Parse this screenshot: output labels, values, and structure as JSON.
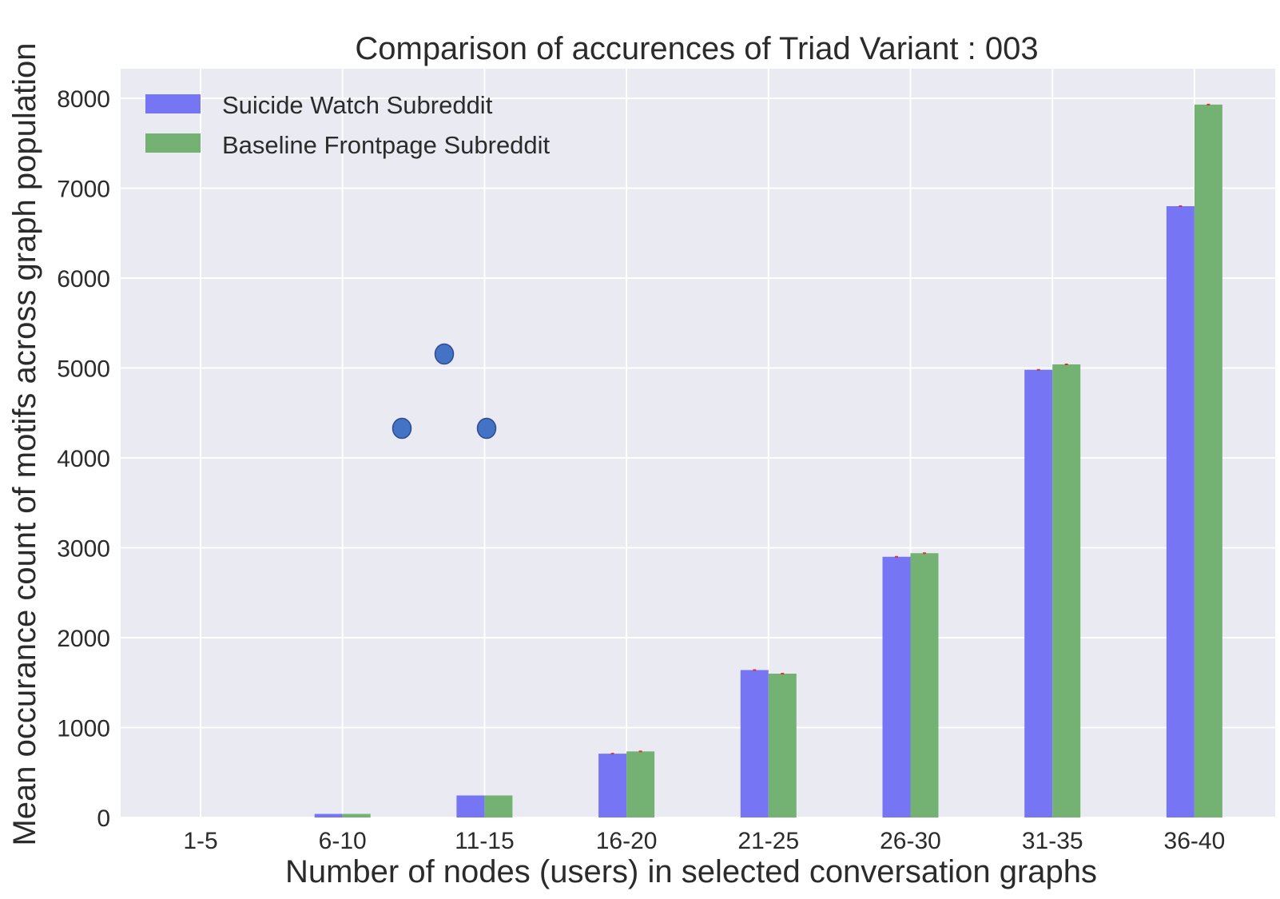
{
  "chart_data": {
    "type": "bar",
    "title": "Comparison of accurences of Triad Variant  : 003",
    "xlabel": "Number of nodes (users) in selected conversation graphs",
    "ylabel": "Mean occurance count of motifs across graph population",
    "categories": [
      "1-5",
      "6-10",
      "11-15",
      "16-20",
      "21-25",
      "26-30",
      "31-35",
      "36-40"
    ],
    "series": [
      {
        "name": "Suicide Watch Subreddit",
        "color": "#7676f5",
        "values": [
          0,
          40,
          245,
          710,
          1640,
          2900,
          4980,
          6800
        ]
      },
      {
        "name": "Baseline Frontpage Subreddit",
        "color": "#74b274",
        "values": [
          0,
          40,
          245,
          735,
          1600,
          2940,
          5040,
          7930
        ]
      }
    ],
    "ylim": [
      0,
      8200
    ],
    "yticks": [
      0,
      1000,
      2000,
      3000,
      4000,
      5000,
      6000,
      7000,
      8000
    ],
    "grid": true,
    "legend_position": "top-left",
    "background_color": "#eaeaf2",
    "grid_color": "#ffffff",
    "error_bar_color": "#e03030",
    "triad_motif": {
      "node_color": "#4472c4",
      "node_stroke": "#2f4b8f",
      "nodes": [
        "top",
        "bottom-left",
        "bottom-right"
      ],
      "edges": []
    }
  }
}
